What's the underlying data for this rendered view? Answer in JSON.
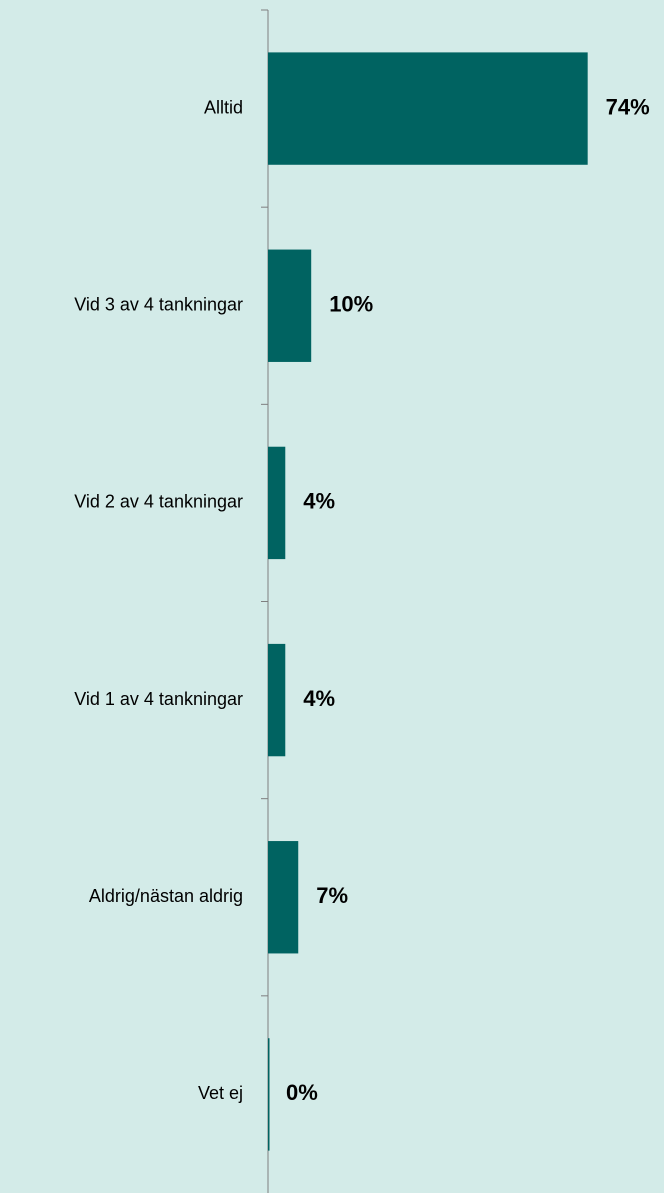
{
  "chart_data": {
    "type": "barh",
    "categories": [
      "Alltid",
      "Vid 3 av 4 tankningar",
      "Vid 2 av 4 tankningar",
      "Vid 1 av 4 tankningar",
      "Aldrig/nästan aldrig",
      "Vet ej"
    ],
    "values": [
      74,
      10,
      4,
      4,
      7,
      0
    ],
    "value_labels": [
      "74%",
      "10%",
      "4%",
      "4%",
      "7%",
      "0%"
    ],
    "color": "#006361"
  }
}
